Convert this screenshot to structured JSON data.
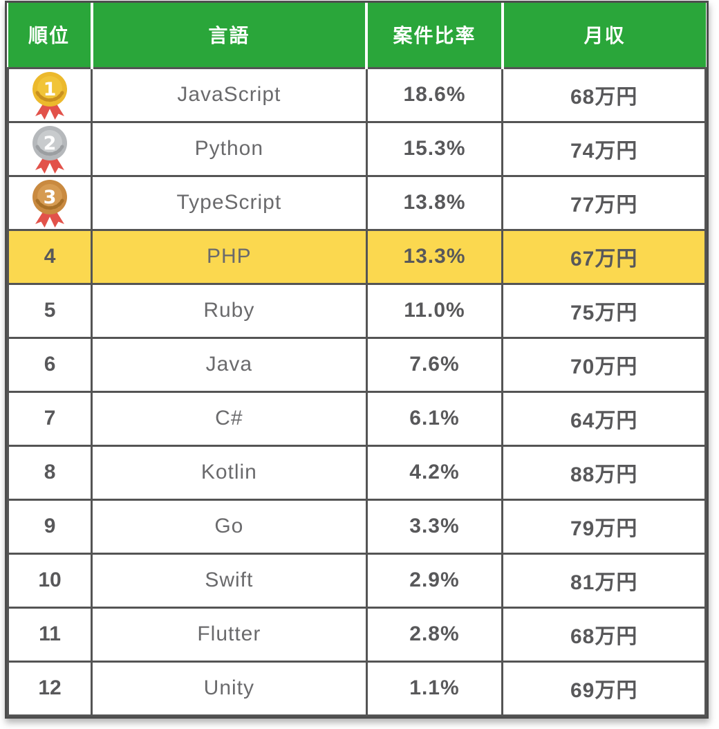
{
  "chart_data": {
    "type": "table",
    "columns": [
      "順位",
      "言語",
      "案件比率",
      "月収"
    ],
    "rows": [
      {
        "rank": "1",
        "medal": "gold",
        "language": "JavaScript",
        "ratio": "18.6%",
        "ratio_pct": 18.6,
        "income": "68万円",
        "income_man_yen": 68,
        "highlight": false
      },
      {
        "rank": "2",
        "medal": "silver",
        "language": "Python",
        "ratio": "15.3%",
        "ratio_pct": 15.3,
        "income": "74万円",
        "income_man_yen": 74,
        "highlight": false
      },
      {
        "rank": "3",
        "medal": "bronze",
        "language": "TypeScript",
        "ratio": "13.8%",
        "ratio_pct": 13.8,
        "income": "77万円",
        "income_man_yen": 77,
        "highlight": false
      },
      {
        "rank": "4",
        "medal": null,
        "language": "PHP",
        "ratio": "13.3%",
        "ratio_pct": 13.3,
        "income": "67万円",
        "income_man_yen": 67,
        "highlight": true
      },
      {
        "rank": "5",
        "medal": null,
        "language": "Ruby",
        "ratio": "11.0%",
        "ratio_pct": 11.0,
        "income": "75万円",
        "income_man_yen": 75,
        "highlight": false
      },
      {
        "rank": "6",
        "medal": null,
        "language": "Java",
        "ratio": "7.6%",
        "ratio_pct": 7.6,
        "income": "70万円",
        "income_man_yen": 70,
        "highlight": false
      },
      {
        "rank": "7",
        "medal": null,
        "language": "C#",
        "ratio": "6.1%",
        "ratio_pct": 6.1,
        "income": "64万円",
        "income_man_yen": 64,
        "highlight": false
      },
      {
        "rank": "8",
        "medal": null,
        "language": "Kotlin",
        "ratio": "4.2%",
        "ratio_pct": 4.2,
        "income": "88万円",
        "income_man_yen": 88,
        "highlight": false
      },
      {
        "rank": "9",
        "medal": null,
        "language": "Go",
        "ratio": "3.3%",
        "ratio_pct": 3.3,
        "income": "79万円",
        "income_man_yen": 79,
        "highlight": false
      },
      {
        "rank": "10",
        "medal": null,
        "language": "Swift",
        "ratio": "2.9%",
        "ratio_pct": 2.9,
        "income": "81万円",
        "income_man_yen": 81,
        "highlight": false
      },
      {
        "rank": "11",
        "medal": null,
        "language": "Flutter",
        "ratio": "2.8%",
        "ratio_pct": 2.8,
        "income": "68万円",
        "income_man_yen": 68,
        "highlight": false
      },
      {
        "rank": "12",
        "medal": null,
        "language": "Unity",
        "ratio": "1.1%",
        "ratio_pct": 1.1,
        "income": "69万円",
        "income_man_yen": 69,
        "highlight": false
      }
    ]
  },
  "colors": {
    "header_bg": "#2aa63a",
    "highlight_bg": "#fbd84f",
    "grid_border": "#545454",
    "language_text": "#6a6a6c",
    "value_text": "#58585a",
    "medals": {
      "gold": {
        "outer": "#ecb92c",
        "inner": "#f1c438",
        "laurel": "#c8901f"
      },
      "silver": {
        "outer": "#b5b8bb",
        "inner": "#c8cbcd",
        "laurel": "#9b9ea1"
      },
      "bronze": {
        "outer": "#c98a40",
        "inner": "#d69b52",
        "laurel": "#a87028"
      },
      "ribbon": "#e2524a"
    }
  }
}
